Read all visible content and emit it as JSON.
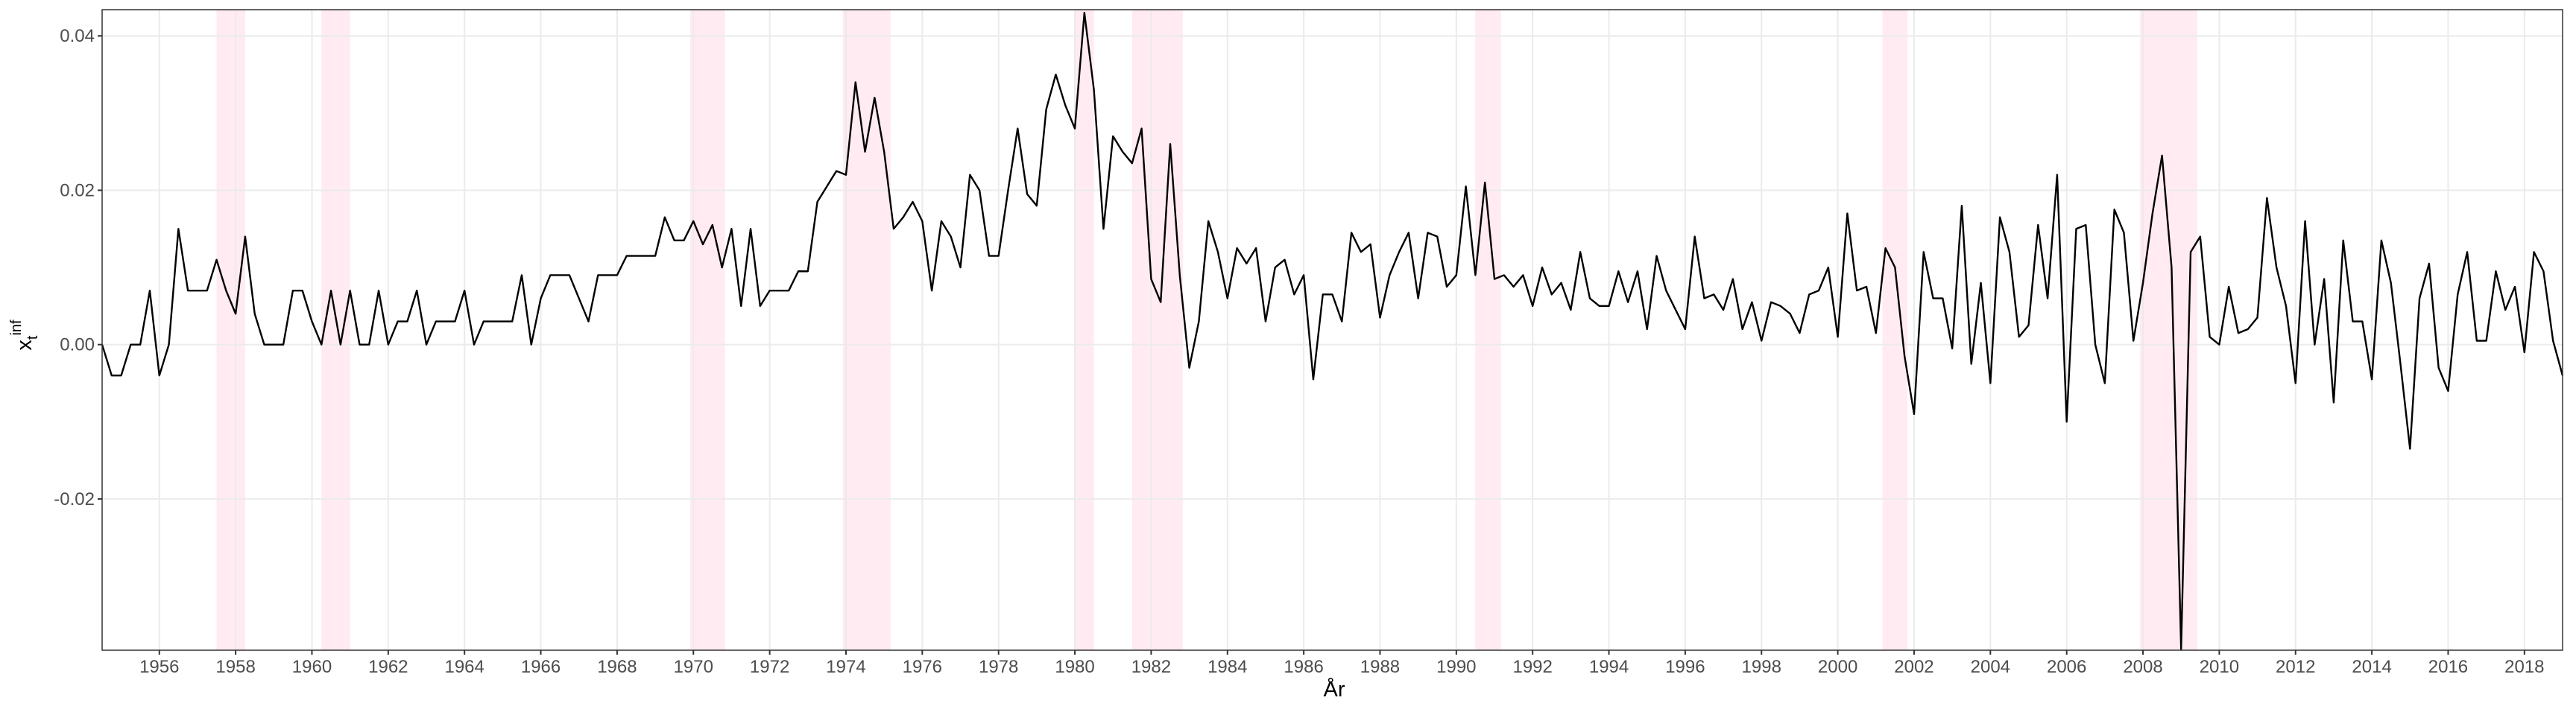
{
  "chart_data": {
    "type": "line",
    "xlabel": "År",
    "ylabel": {
      "base": "x",
      "sub": "t",
      "sup": "inf"
    },
    "xlim": [
      1954.5,
      2019.0
    ],
    "ylim": [
      -0.0396,
      0.0434
    ],
    "xticks": [
      1956,
      1958,
      1960,
      1962,
      1964,
      1966,
      1968,
      1970,
      1972,
      1974,
      1976,
      1978,
      1980,
      1982,
      1984,
      1986,
      1988,
      1990,
      1992,
      1994,
      1996,
      1998,
      2000,
      2002,
      2004,
      2006,
      2008,
      2010,
      2012,
      2014,
      2016,
      2018
    ],
    "yticks": [
      -0.02,
      {
        "value": 0,
        "label": "0.00"
      },
      0.02,
      0.04
    ],
    "grid": true,
    "shaded_color": "#ffe4ec",
    "shaded_regions": [
      [
        1957.5,
        1958.25
      ],
      [
        1960.25,
        1961.0
      ],
      [
        1969.92,
        1970.83
      ],
      [
        1973.92,
        1975.17
      ],
      [
        1980.0,
        1980.5
      ],
      [
        1981.5,
        1982.83
      ],
      [
        1990.5,
        1991.17
      ],
      [
        2001.17,
        2001.83
      ],
      [
        2007.92,
        2009.42
      ]
    ],
    "series": [
      {
        "color": "#000000",
        "x": [
          1954.5,
          1954.75,
          1955,
          1955.25,
          1955.5,
          1955.75,
          1956,
          1956.25,
          1956.5,
          1956.75,
          1957,
          1957.25,
          1957.5,
          1957.75,
          1958,
          1958.25,
          1958.5,
          1958.75,
          1959,
          1959.25,
          1959.5,
          1959.75,
          1960,
          1960.25,
          1960.5,
          1960.75,
          1961,
          1961.25,
          1961.5,
          1961.75,
          1962,
          1962.25,
          1962.5,
          1962.75,
          1963,
          1963.25,
          1963.5,
          1963.75,
          1964,
          1964.25,
          1964.5,
          1964.75,
          1965,
          1965.25,
          1965.5,
          1965.75,
          1966,
          1966.25,
          1966.5,
          1966.75,
          1967,
          1967.25,
          1967.5,
          1967.75,
          1968,
          1968.25,
          1968.5,
          1968.75,
          1969,
          1969.25,
          1969.5,
          1969.75,
          1970,
          1970.25,
          1970.5,
          1970.75,
          1971,
          1971.25,
          1971.5,
          1971.75,
          1972,
          1972.25,
          1972.5,
          1972.75,
          1973,
          1973.25,
          1973.5,
          1973.75,
          1974,
          1974.25,
          1974.5,
          1974.75,
          1975,
          1975.25,
          1975.5,
          1975.75,
          1976,
          1976.25,
          1976.5,
          1976.75,
          1977,
          1977.25,
          1977.5,
          1977.75,
          1978,
          1978.25,
          1978.5,
          1978.75,
          1979,
          1979.25,
          1979.5,
          1979.75,
          1980,
          1980.25,
          1980.5,
          1980.75,
          1981,
          1981.25,
          1981.5,
          1981.75,
          1982,
          1982.25,
          1982.5,
          1982.75,
          1983,
          1983.25,
          1983.5,
          1983.75,
          1984,
          1984.25,
          1984.5,
          1984.75,
          1985,
          1985.25,
          1985.5,
          1985.75,
          1986,
          1986.25,
          1986.5,
          1986.75,
          1987,
          1987.25,
          1987.5,
          1987.75,
          1988,
          1988.25,
          1988.5,
          1988.75,
          1989,
          1989.25,
          1989.5,
          1989.75,
          1990,
          1990.25,
          1990.5,
          1990.75,
          1991,
          1991.25,
          1991.5,
          1991.75,
          1992,
          1992.25,
          1992.5,
          1992.75,
          1993,
          1993.25,
          1993.5,
          1993.75,
          1994,
          1994.25,
          1994.5,
          1994.75,
          1995,
          1995.25,
          1995.5,
          1995.75,
          1996,
          1996.25,
          1996.5,
          1996.75,
          1997,
          1997.25,
          1997.5,
          1997.75,
          1998,
          1998.25,
          1998.5,
          1998.75,
          1999,
          1999.25,
          1999.5,
          1999.75,
          2000,
          2000.25,
          2000.5,
          2000.75,
          2001,
          2001.25,
          2001.5,
          2001.75,
          2002,
          2002.25,
          2002.5,
          2002.75,
          2003,
          2003.25,
          2003.5,
          2003.75,
          2004,
          2004.25,
          2004.5,
          2004.75,
          2005,
          2005.25,
          2005.5,
          2005.75,
          2006,
          2006.25,
          2006.5,
          2006.75,
          2007,
          2007.25,
          2007.5,
          2007.75,
          2008,
          2008.25,
          2008.5,
          2008.75,
          2009,
          2009.25,
          2009.5,
          2009.75,
          2010,
          2010.25,
          2010.5,
          2010.75,
          2011,
          2011.25,
          2011.5,
          2011.75,
          2012,
          2012.25,
          2012.5,
          2012.75,
          2013,
          2013.25,
          2013.5,
          2013.75,
          2014,
          2014.25,
          2014.5,
          2014.75,
          2015,
          2015.25,
          2015.5,
          2015.75,
          2016,
          2016.25,
          2016.5,
          2016.75,
          2017,
          2017.25,
          2017.5,
          2017.75,
          2018,
          2018.25,
          2018.5,
          2018.75,
          2019
        ],
        "values": [
          0,
          -0.004,
          -0.004,
          0,
          0,
          0.007,
          -0.004,
          0,
          0.015,
          0.007,
          0.007,
          0.007,
          0.011,
          0.007,
          0.004,
          0.014,
          0.004,
          0,
          0,
          0,
          0.007,
          0.007,
          0.003,
          0,
          0.007,
          0,
          0.007,
          0,
          0,
          0.007,
          0,
          0.003,
          0.003,
          0.007,
          0,
          0.003,
          0.003,
          0.003,
          0.007,
          0,
          0.003,
          0.003,
          0.003,
          0.003,
          0.009,
          0,
          0.006,
          0.009,
          0.009,
          0.009,
          0.006,
          0.003,
          0.009,
          0.009,
          0.009,
          0.0115,
          0.0115,
          0.0115,
          0.0115,
          0.0165,
          0.0135,
          0.0135,
          0.016,
          0.013,
          0.0155,
          0.01,
          0.015,
          0.005,
          0.015,
          0.005,
          0.007,
          0.007,
          0.007,
          0.0095,
          0.0095,
          0.0185,
          0.0205,
          0.0225,
          0.022,
          0.034,
          0.025,
          0.032,
          0.025,
          0.015,
          0.0165,
          0.0185,
          0.016,
          0.007,
          0.016,
          0.014,
          0.01,
          0.022,
          0.02,
          0.0115,
          0.0115,
          0.02,
          0.028,
          0.0195,
          0.018,
          0.0305,
          0.035,
          0.031,
          0.028,
          0.043,
          0.033,
          0.015,
          0.027,
          0.025,
          0.0235,
          0.028,
          0.0085,
          0.0055,
          0.026,
          0.009,
          -0.003,
          0.003,
          0.016,
          0.012,
          0.006,
          0.0125,
          0.0105,
          0.0125,
          0.003,
          0.01,
          0.011,
          0.0065,
          0.009,
          -0.0045,
          0.0065,
          0.0065,
          0.003,
          0.0145,
          0.012,
          0.013,
          0.0035,
          0.009,
          0.012,
          0.0145,
          0.006,
          0.0145,
          0.014,
          0.0075,
          0.009,
          0.0205,
          0.009,
          0.021,
          0.0085,
          0.009,
          0.0075,
          0.009,
          0.005,
          0.01,
          0.0065,
          0.008,
          0.0045,
          0.012,
          0.006,
          0.005,
          0.005,
          0.0095,
          0.0055,
          0.0095,
          0.002,
          0.0115,
          0.007,
          0.0045,
          0.002,
          0.014,
          0.006,
          0.0065,
          0.0045,
          0.0085,
          0.002,
          0.0055,
          0.0005,
          0.0055,
          0.005,
          0.004,
          0.0015,
          0.0065,
          0.007,
          0.01,
          0.001,
          0.017,
          0.007,
          0.0075,
          0.0015,
          0.0125,
          0.01,
          -0.0015,
          -0.009,
          0.012,
          0.006,
          0.006,
          -0.0005,
          0.018,
          -0.0025,
          0.008,
          -0.005,
          0.0165,
          0.012,
          0.001,
          0.0025,
          0.0155,
          0.006,
          0.022,
          -0.01,
          0.015,
          0.0155,
          0,
          -0.005,
          0.0175,
          0.0145,
          0.0005,
          0.008,
          0.017,
          0.0245,
          0.01,
          -0.0395,
          0.012,
          0.014,
          0.001,
          0,
          0.0075,
          0.0015,
          0.002,
          0.0035,
          0.019,
          0.01,
          0.005,
          -0.005,
          0.016,
          0,
          0.0085,
          -0.0075,
          0.0135,
          0.003,
          0.003,
          -0.0045,
          0.0135,
          0.008,
          -0.0025,
          -0.0135,
          0.006,
          0.0105,
          -0.003,
          -0.006,
          0.0065,
          0.012,
          0.0005,
          0.0005,
          0.0095,
          0.0045,
          0.0075,
          -0.001,
          0.012,
          0.0095,
          0.0005,
          -0.004
        ]
      }
    ]
  }
}
